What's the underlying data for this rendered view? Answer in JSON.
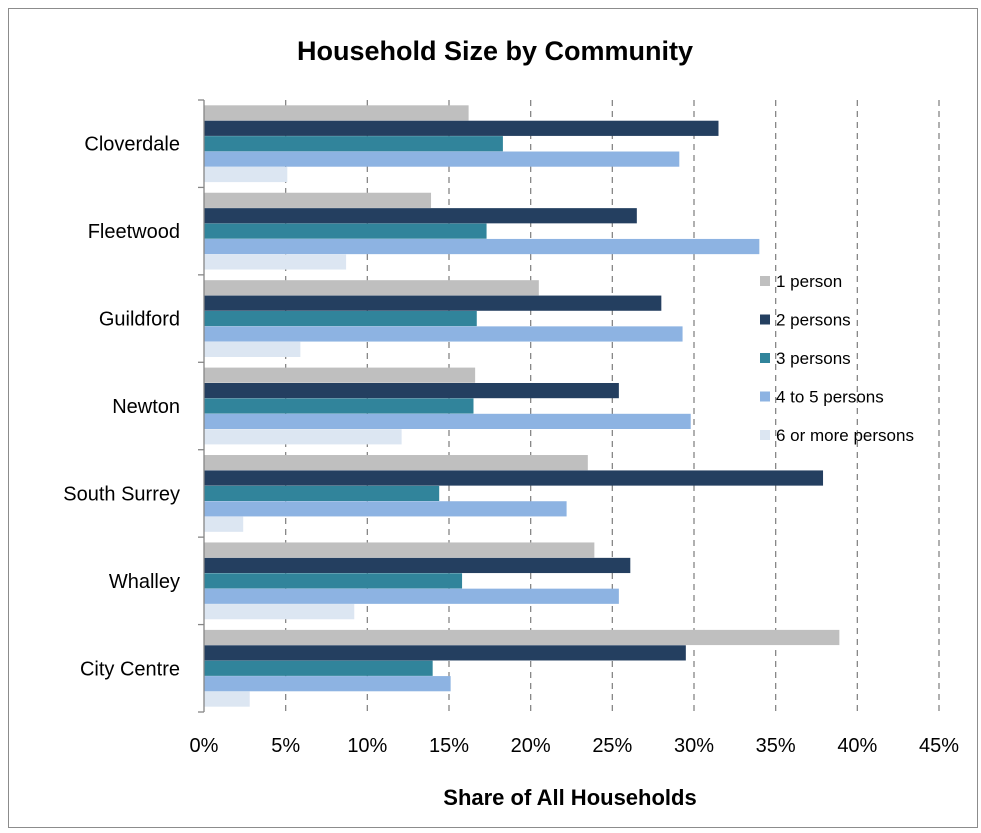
{
  "chart_data": {
    "type": "bar",
    "orientation": "horizontal",
    "title": "Household Size by Community",
    "xlabel": "Share of All Households",
    "ylabel": "",
    "xlim": [
      0,
      45
    ],
    "xticks": [
      "0%",
      "5%",
      "10%",
      "15%",
      "20%",
      "25%",
      "30%",
      "35%",
      "40%",
      "45%"
    ],
    "grid": "vertical dashed",
    "legend_position": "right",
    "categories": [
      "Cloverdale",
      "Fleetwood",
      "Guildford",
      "Newton",
      "South Surrey",
      "Whalley",
      "City Centre"
    ],
    "series": [
      {
        "name": "1 person",
        "color": "#bfbfbf",
        "values": [
          16.2,
          13.9,
          20.5,
          16.6,
          23.5,
          23.9,
          38.9
        ]
      },
      {
        "name": "2 persons",
        "color": "#243f60",
        "values": [
          31.5,
          26.5,
          28.0,
          25.4,
          37.9,
          26.1,
          29.5
        ]
      },
      {
        "name": "3 persons",
        "color": "#31849b",
        "values": [
          18.3,
          17.3,
          16.7,
          16.5,
          14.4,
          15.8,
          14.0
        ]
      },
      {
        "name": "4 to 5 persons",
        "color": "#8db3e2",
        "values": [
          29.1,
          34.0,
          29.3,
          29.8,
          22.2,
          25.4,
          15.1
        ]
      },
      {
        "name": "6 or more persons",
        "color": "#dce6f2",
        "values": [
          5.1,
          8.7,
          5.9,
          12.1,
          2.4,
          9.2,
          2.8
        ]
      }
    ]
  }
}
